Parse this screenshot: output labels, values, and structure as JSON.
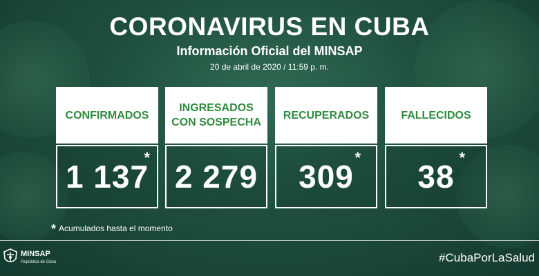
{
  "header": {
    "title": "CORONAVIRUS EN CUBA",
    "subtitle": "Información Oficial del MINSAP",
    "date": "20 de abril de 2020 / 11:59 p. m."
  },
  "cards": [
    {
      "label": "CONFIRMADOS",
      "value": "1 137",
      "asterisk": "*"
    },
    {
      "label": "INGRESADOS CON SOSPECHA",
      "label_line1": "INGRESADOS",
      "label_line2": "CON SOSPECHA",
      "value": "2 279",
      "asterisk": ""
    },
    {
      "label": "RECUPERADOS",
      "value": "309",
      "asterisk": "*"
    },
    {
      "label": "FALLECIDOS",
      "value": "38",
      "asterisk": "*"
    }
  ],
  "footnote": {
    "star": "*",
    "text": "Acumulados hasta el momento"
  },
  "footer": {
    "logo_text": "MINSAP",
    "logo_sub": "República de Cuba",
    "hashtag": "#CubaPorLaSalud"
  },
  "colors": {
    "background": "#1f4e3e",
    "label_green": "#2f8a3e",
    "text": "#ffffff"
  }
}
